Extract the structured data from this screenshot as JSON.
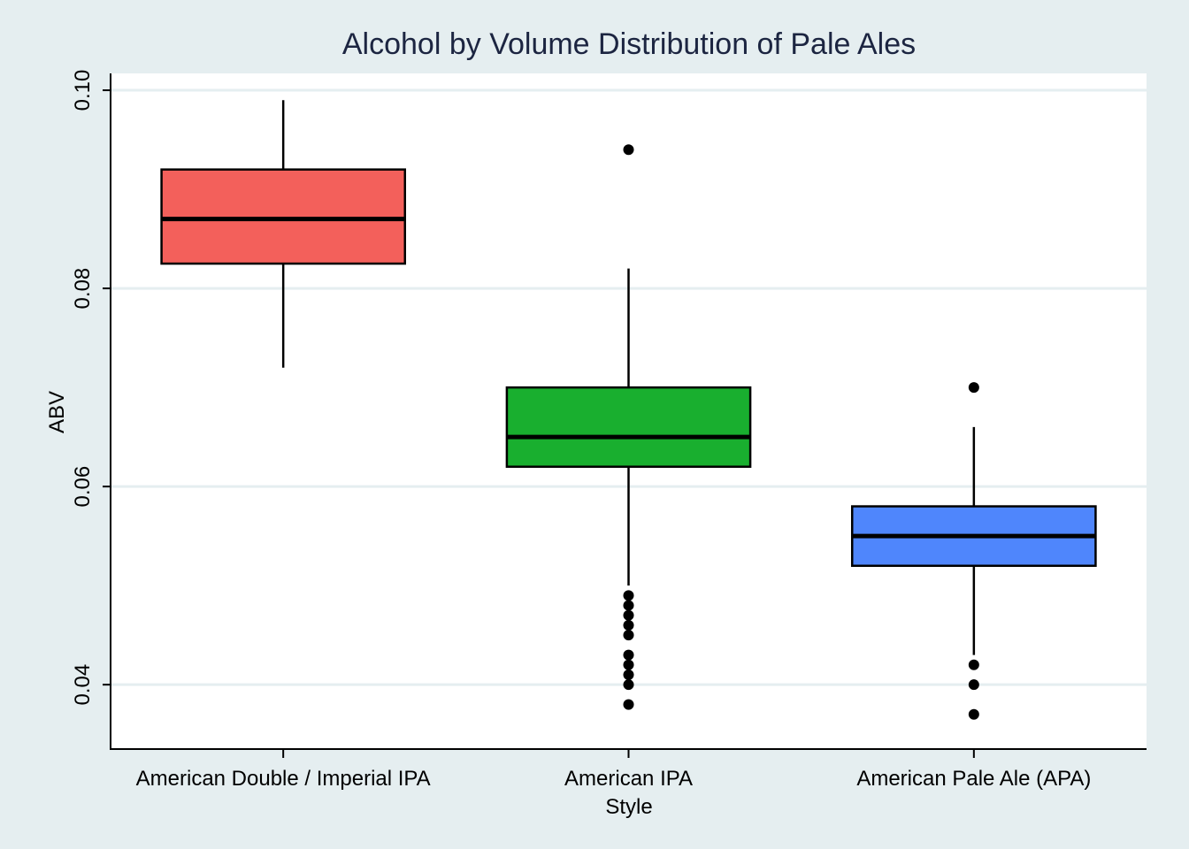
{
  "chart_data": {
    "type": "box",
    "title": "Alcohol by Volume Distribution of Pale Ales",
    "xlabel": "Style",
    "ylabel": "ABV",
    "ylim": [
      0.0335,
      0.1017
    ],
    "yticks": [
      0.04,
      0.06,
      0.08,
      0.1
    ],
    "ytick_labels": [
      "0.04",
      "0.06",
      "0.08",
      "0.10"
    ],
    "grid": true,
    "legend": "none",
    "categories": [
      "American Double / Imperial IPA",
      "American IPA",
      "American Pale Ale (APA)"
    ],
    "series": [
      {
        "category": "American Double / Imperial IPA",
        "color": "#f3605b",
        "whisker_low": 0.072,
        "q1": 0.0825,
        "median": 0.087,
        "q3": 0.092,
        "whisker_high": 0.099,
        "outliers": []
      },
      {
        "category": "American IPA",
        "color": "#19af2f",
        "whisker_low": 0.05,
        "q1": 0.062,
        "median": 0.065,
        "q3": 0.07,
        "whisker_high": 0.082,
        "outliers": [
          0.094,
          0.049,
          0.048,
          0.047,
          0.046,
          0.045,
          0.043,
          0.042,
          0.041,
          0.04,
          0.038
        ]
      },
      {
        "category": "American Pale Ale (APA)",
        "color": "#4f86fc",
        "whisker_low": 0.043,
        "q1": 0.052,
        "median": 0.055,
        "q3": 0.058,
        "whisker_high": 0.066,
        "outliers": [
          0.07,
          0.042,
          0.04,
          0.037
        ]
      }
    ]
  }
}
